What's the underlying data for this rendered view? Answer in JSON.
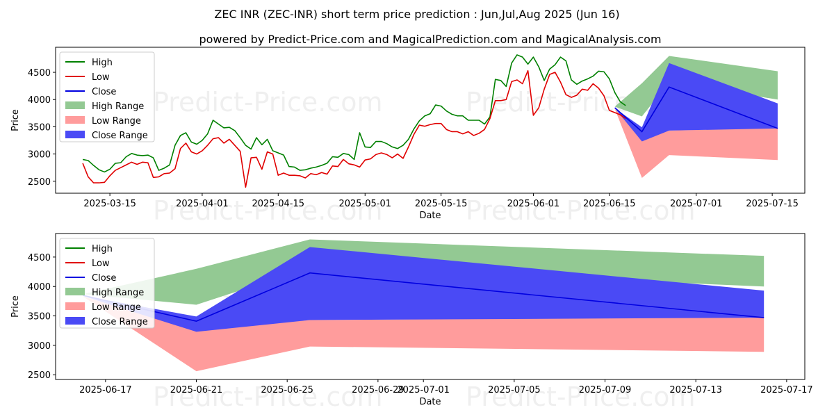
{
  "title": "ZEC INR (ZEC-INR) short term price prediction : Jun,Jul,Aug 2025 (Jun 16)",
  "subtitle": "powered by Predict-Price.com and MagicalPrediction.com and MagicalAnalysis.com",
  "watermark": "Predict-Price.com",
  "colors": {
    "high": "#008000",
    "low": "#e00000",
    "close": "#0000e0",
    "high_range": "#93c993",
    "low_range": "#ff9c9c",
    "close_range": "#4a4af5"
  },
  "chart_data": [
    {
      "type": "line",
      "name": "full-history-chart",
      "xlabel": "Date",
      "ylabel": "Price",
      "x_ticks": [
        "2025-03-15",
        "2025-04-01",
        "2025-04-15",
        "2025-05-01",
        "2025-05-15",
        "2025-06-01",
        "2025-06-15",
        "2025-07-01",
        "2025-07-15"
      ],
      "y_ticks": [
        2500,
        3000,
        3500,
        4000,
        4500
      ],
      "xlim": [
        "2025-03-05",
        "2025-07-21"
      ],
      "ylim": [
        2280,
        4960
      ],
      "legend": [
        "High",
        "Low",
        "Close",
        "High Range",
        "Low Range",
        "Close Range"
      ],
      "legend_position": "upper-left",
      "series": [
        {
          "name": "High",
          "start": "2025-03-10",
          "values": [
            2900,
            2880,
            2790,
            2710,
            2670,
            2720,
            2830,
            2840,
            2950,
            3010,
            2980,
            2970,
            2980,
            2930,
            2700,
            2740,
            2800,
            3160,
            3340,
            3390,
            3220,
            3180,
            3250,
            3370,
            3620,
            3550,
            3480,
            3490,
            3430,
            3300,
            3160,
            3090,
            3300,
            3170,
            3270,
            3060,
            3020,
            2980,
            2770,
            2760,
            2700,
            2710,
            2740,
            2760,
            2790,
            2830,
            2950,
            2940,
            3010,
            2990,
            2900,
            3390,
            3130,
            3120,
            3230,
            3230,
            3190,
            3130,
            3100,
            3160,
            3270,
            3460,
            3610,
            3700,
            3740,
            3900,
            3880,
            3790,
            3730,
            3700,
            3700,
            3620,
            3620,
            3620,
            3550,
            3680,
            4370,
            4350,
            4240,
            4670,
            4820,
            4780,
            4650,
            4780,
            4600,
            4350,
            4560,
            4640,
            4780,
            4710,
            4360,
            4280,
            4340,
            4380,
            4430,
            4520,
            4510,
            4380,
            4130,
            3960,
            3890
          ]
        },
        {
          "name": "Low",
          "start": "2025-03-10",
          "values": [
            2830,
            2580,
            2470,
            2470,
            2480,
            2600,
            2700,
            2750,
            2800,
            2850,
            2810,
            2850,
            2840,
            2570,
            2580,
            2640,
            2650,
            2730,
            3100,
            3200,
            3040,
            3000,
            3060,
            3160,
            3280,
            3300,
            3200,
            3270,
            3160,
            3050,
            2390,
            2930,
            2940,
            2720,
            3040,
            3000,
            2610,
            2650,
            2610,
            2610,
            2600,
            2560,
            2640,
            2620,
            2660,
            2630,
            2780,
            2770,
            2900,
            2820,
            2800,
            2760,
            2890,
            2910,
            2990,
            3020,
            2990,
            2930,
            3000,
            2920,
            3130,
            3360,
            3530,
            3510,
            3540,
            3560,
            3560,
            3450,
            3410,
            3410,
            3370,
            3410,
            3340,
            3380,
            3450,
            3650,
            3980,
            3980,
            4000,
            4330,
            4360,
            4290,
            4530,
            3710,
            3850,
            4190,
            4460,
            4500,
            4320,
            4090,
            4040,
            4080,
            4190,
            4170,
            4290,
            4210,
            4070,
            3800,
            3760,
            3720,
            3650
          ]
        }
      ],
      "forecast": {
        "dates": [
          "2025-06-16",
          "2025-06-21",
          "2025-06-26",
          "2025-07-16"
        ],
        "close": [
          3850,
          3410,
          4230,
          3470
        ],
        "high_range": [
          [
            3870,
            3870
          ],
          [
            3690,
            4300
          ],
          [
            4320,
            4800
          ],
          [
            4000,
            4520
          ]
        ],
        "close_range": [
          [
            3840,
            3840
          ],
          [
            3230,
            3490
          ],
          [
            3430,
            4670
          ],
          [
            3470,
            3930
          ]
        ],
        "low_range": [
          [
            3830,
            3830
          ],
          [
            2560,
            3270
          ],
          [
            2980,
            3430
          ],
          [
            2890,
            3480
          ]
        ]
      }
    },
    {
      "type": "area",
      "name": "forecast-zoom-chart",
      "xlabel": "Date",
      "ylabel": "Price",
      "x_ticks": [
        "2025-06-17",
        "2025-06-21",
        "2025-06-25",
        "2025-06-29",
        "2025-07-01",
        "2025-07-05",
        "2025-07-09",
        "2025-07-13",
        "2025-07-17"
      ],
      "y_ticks": [
        2500,
        3000,
        3500,
        4000,
        4500
      ],
      "xlim": [
        "2025-06-14.8",
        "2025-07-17.8"
      ],
      "ylim": [
        2420,
        4900
      ],
      "legend": [
        "High",
        "Low",
        "Close",
        "High Range",
        "Low Range",
        "Close Range"
      ],
      "legend_position": "upper-left"
    }
  ]
}
